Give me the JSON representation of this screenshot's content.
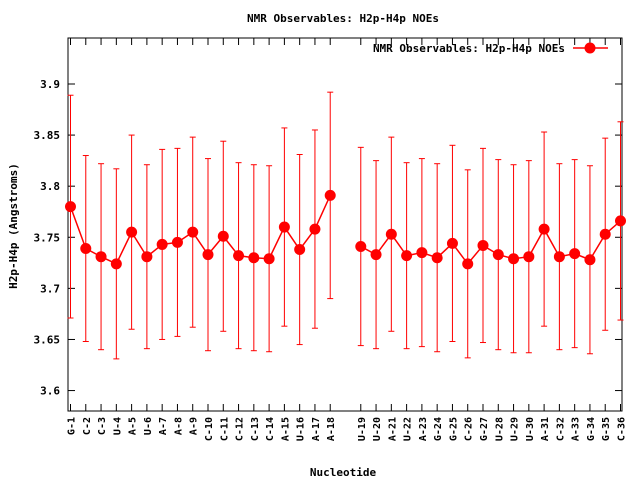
{
  "chart_data": {
    "type": "line",
    "title": "NMR Observables: H2p-H4p NOEs",
    "xlabel": "Nucleotide",
    "ylabel": "H2p-H4p (Angstroms)",
    "ylim": [
      3.58,
      3.945
    ],
    "yticks": [
      3.6,
      3.65,
      3.7,
      3.75,
      3.8,
      3.85,
      3.9
    ],
    "grid": false,
    "legend_position": "top-right",
    "color": "#ff0000",
    "series": [
      {
        "name": "NMR Observables: H2p-H4p NOEs",
        "segments": [
          {
            "labels": [
              "G-1",
              "C-2",
              "C-3",
              "U-4",
              "A-5",
              "U-6",
              "A-7",
              "A-8",
              "A-9",
              "C-10",
              "C-11",
              "C-12",
              "C-13",
              "C-14",
              "A-15",
              "U-16",
              "A-17",
              "A-18"
            ],
            "values": [
              3.78,
              3.739,
              3.731,
              3.724,
              3.755,
              3.731,
              3.743,
              3.745,
              3.755,
              3.733,
              3.751,
              3.732,
              3.73,
              3.729,
              3.76,
              3.738,
              3.758,
              3.791
            ],
            "errors": [
              0.109,
              0.091,
              0.091,
              0.093,
              0.095,
              0.09,
              0.093,
              0.092,
              0.093,
              0.094,
              0.093,
              0.091,
              0.091,
              0.091,
              0.097,
              0.093,
              0.097,
              0.101
            ]
          },
          {
            "labels": [
              "U-19",
              "U-20",
              "A-21",
              "U-22",
              "A-23",
              "G-24",
              "G-25",
              "C-26",
              "G-27",
              "U-28",
              "U-29",
              "U-30",
              "A-31",
              "C-32",
              "A-33",
              "G-34",
              "G-35",
              "C-36"
            ],
            "values": [
              3.741,
              3.733,
              3.753,
              3.732,
              3.735,
              3.73,
              3.744,
              3.724,
              3.742,
              3.733,
              3.729,
              3.731,
              3.758,
              3.731,
              3.734,
              3.728,
              3.753,
              3.766
            ],
            "errors": [
              0.097,
              0.092,
              0.095,
              0.091,
              0.092,
              0.092,
              0.096,
              0.092,
              0.095,
              0.093,
              0.092,
              0.094,
              0.095,
              0.091,
              0.092,
              0.092,
              0.094,
              0.097
            ]
          }
        ]
      }
    ]
  }
}
